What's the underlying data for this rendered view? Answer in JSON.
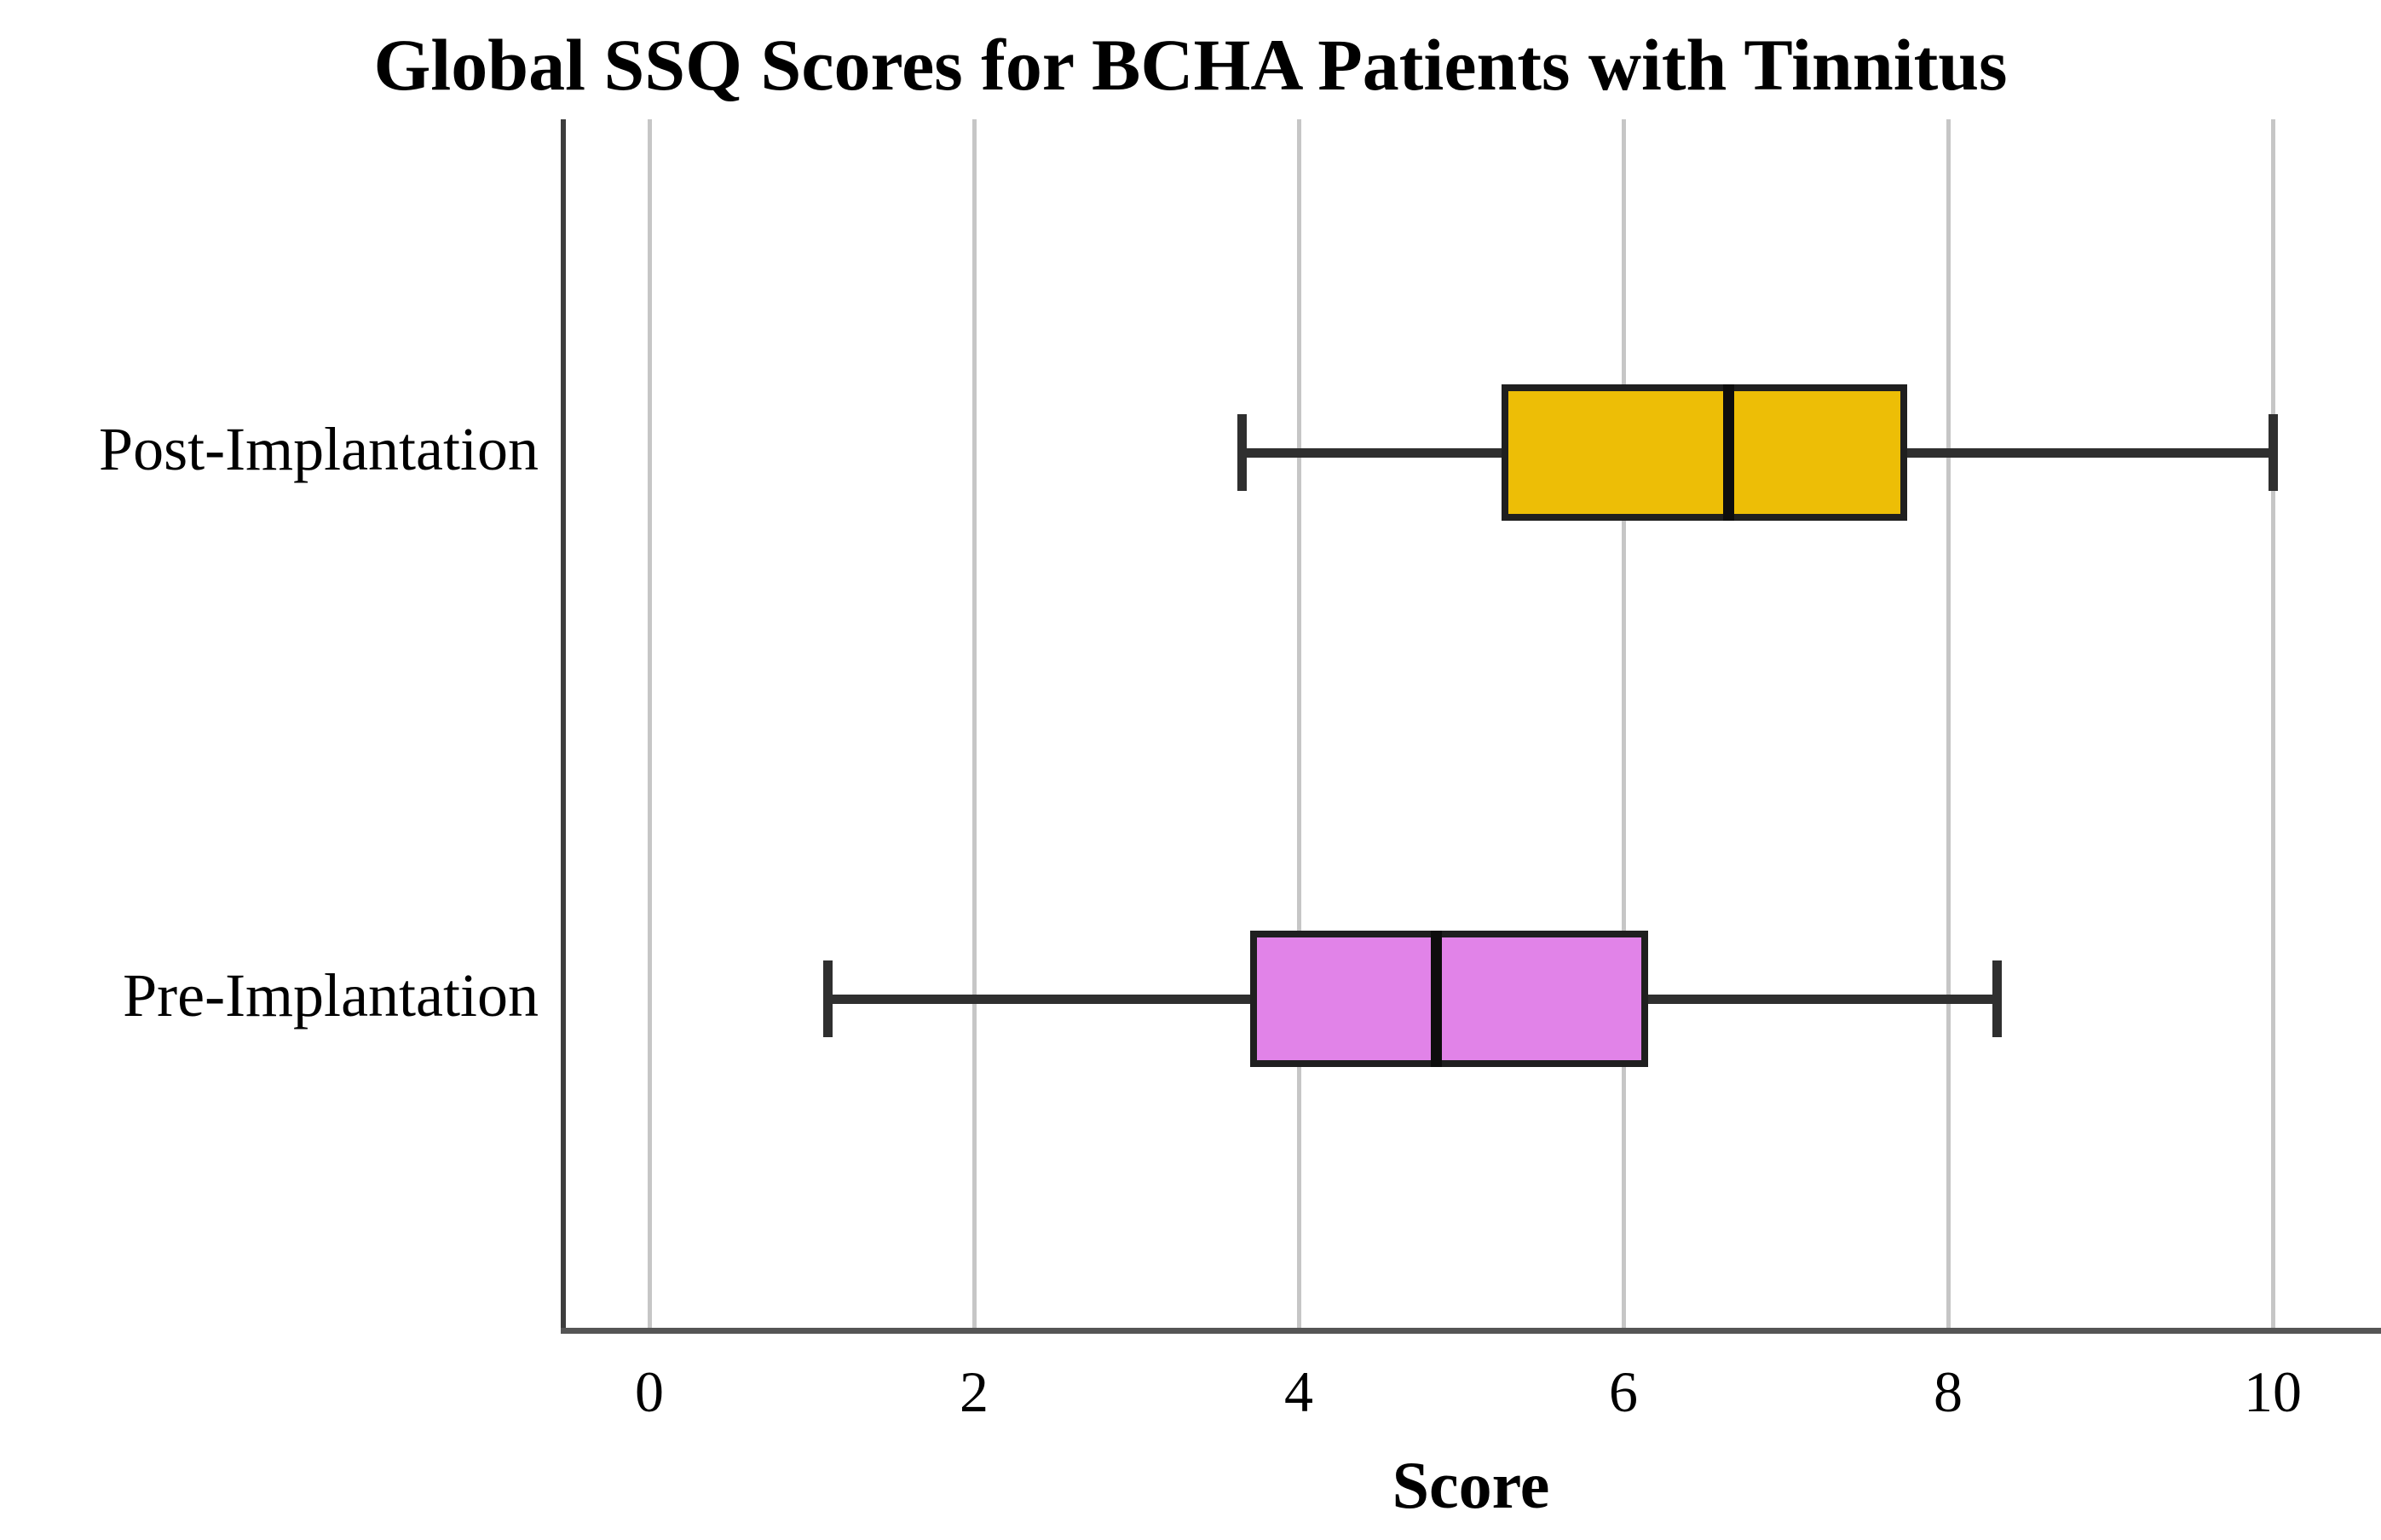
{
  "title": "Global SSQ Scores for BCHA Patients with Tinnitus",
  "chart_data": {
    "type": "boxplot",
    "orientation": "horizontal",
    "title": "Global SSQ Scores for BCHA Patients with Tinnitus",
    "xlabel": "Score",
    "xlim": [
      0,
      10
    ],
    "xticks": [
      0,
      2,
      4,
      6,
      8,
      10
    ],
    "grid": "vertical gridlines at every x tick",
    "legend": "none",
    "categories": [
      "Post-Implantation",
      "Pre-Implantation"
    ],
    "series": [
      {
        "name": "Post-Implantation",
        "min": 3.65,
        "q1": 5.25,
        "median": 6.65,
        "q3": 7.75,
        "max": 10.0,
        "fill_color": "#EDBE06"
      },
      {
        "name": "Pre-Implantation",
        "min": 1.1,
        "q1": 3.7,
        "median": 4.85,
        "q3": 6.15,
        "max": 8.3,
        "fill_color": "#E183E8"
      }
    ]
  },
  "colors": {
    "background": "#ffffff",
    "text": "#000000",
    "box_border": "#1f1f1f",
    "median_line": "#0d0d0d",
    "whisker": "#2f2f2f",
    "gridline": "#c6c6c6",
    "y_axis_line": "#3d3d3d",
    "x_axis_line": "#555555"
  }
}
